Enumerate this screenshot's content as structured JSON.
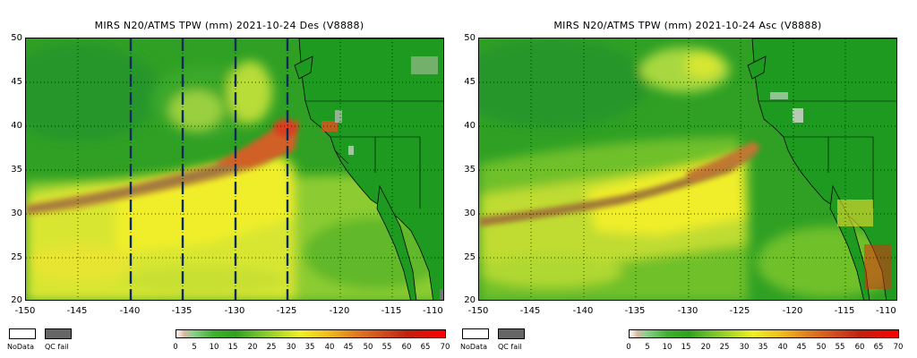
{
  "panels": [
    {
      "title": "MIRS N20/ATMS TPW (mm) 2021-10-24 Des  (V8888)",
      "pass": "Des",
      "dashed_lines_lon": [
        -140,
        -135,
        -130,
        -125
      ]
    },
    {
      "title": "MIRS N20/ATMS TPW (mm) 2021-10-24 Asc  (V8888)",
      "pass": "Asc",
      "dashed_lines_lon": []
    }
  ],
  "axes": {
    "lat_labels": [
      "50",
      "45",
      "40",
      "35",
      "30",
      "25",
      "20"
    ],
    "lon_labels": [
      "-150",
      "-145",
      "-140",
      "-135",
      "-130",
      "-125",
      "-120",
      "-115",
      "-110"
    ]
  },
  "legend": {
    "nodata_label": "NoData",
    "qcfail_label": "QC fail",
    "colorbar_ticks": [
      "0",
      "5",
      "10",
      "15",
      "20",
      "25",
      "30",
      "35",
      "40",
      "45",
      "50",
      "55",
      "60",
      "65",
      "70"
    ]
  },
  "colors": {
    "ocean_green": "#30a020",
    "land_green": "#20a020",
    "moist_yellow": "#f0f028",
    "plume_orange": "#d05020",
    "dash_navy": "#0a2a5a",
    "qcfail_gray": "#666666"
  }
}
